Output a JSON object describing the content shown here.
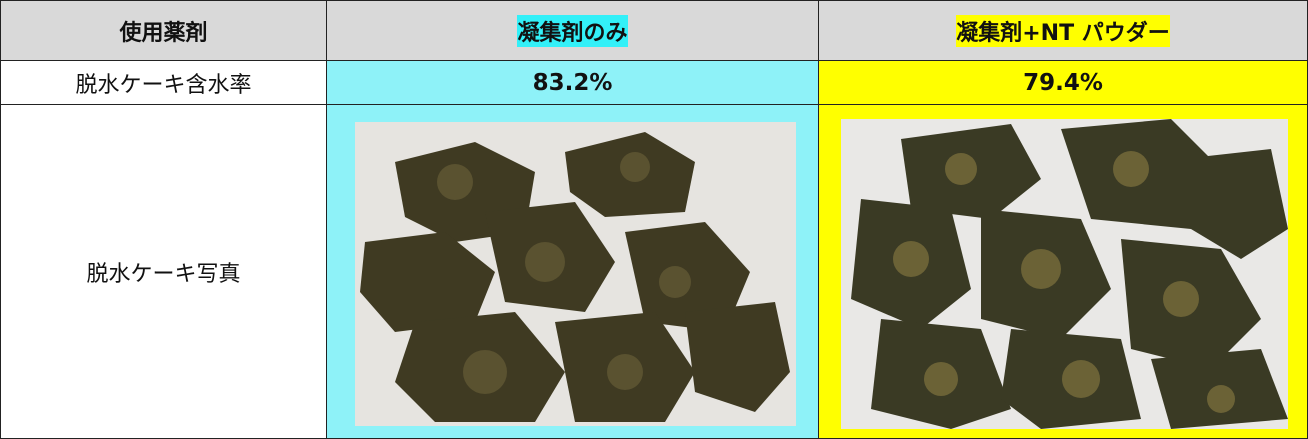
{
  "table": {
    "header": [
      "使用薬剤",
      "凝集剤のみ",
      "凝集剤+NT パウダー"
    ],
    "rows": [
      [
        "脱水ケーキ含水率",
        "83.2%",
        "79.4%"
      ],
      [
        "脱水ケーキ写真"
      ]
    ]
  }
}
